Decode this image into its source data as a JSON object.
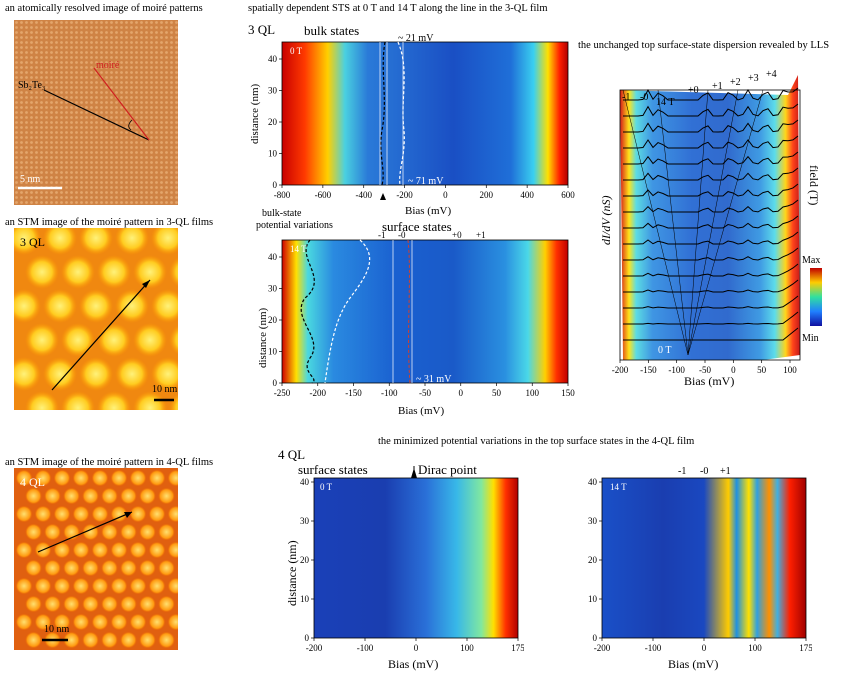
{
  "captions": {
    "moire_image": "an atomically resolved image of moiré patterns",
    "sts_3ql": "spatially dependent STS at 0 T and 14 T along the line in the 3-QL film",
    "lls": "the unchanged top surface-state dispersion revealed by LLS",
    "stm_3ql": "an STM image of the moiré pattern in 3-QL films",
    "stm_4ql": "an STM image of the moiré pattern in 4-QL films",
    "four_ql_min": "the minimized potential variations in the top surface states in the 4-QL film"
  },
  "panel_a": {
    "moire": "moiré",
    "substrate": "Sb₂Te₃",
    "scale": "5 nm"
  },
  "panel_3ql_img": {
    "label": "3 QL",
    "scale": "10 nm"
  },
  "panel_4ql_img": {
    "label": "4 QL",
    "scale": "10 nm"
  },
  "sts3_0T": {
    "ql": "3 QL",
    "title": "bulk states",
    "field": "0 T",
    "ann_top": "~ 21 mV",
    "ann_bottom": "~ 71 mV",
    "ylabel": "distance (nm)",
    "xlabel": "Bias (mV)",
    "xticks": [
      "-800",
      "-600",
      "-400",
      "-200",
      "0",
      "200",
      "400",
      "600"
    ],
    "yticks": [
      "0",
      "10",
      "20",
      "30",
      "40"
    ]
  },
  "sts3_14T": {
    "field": "14 T",
    "bulk_label_1": "bulk-state",
    "bulk_label_2": "potential variations",
    "surface": "surface states",
    "ll": [
      "-1",
      "-0",
      "+0",
      "+1"
    ],
    "ann": "~ 31 mV",
    "ylabel": "distance (nm)",
    "xlabel": "Bias (mV)",
    "xticks": [
      "-250",
      "-200",
      "-150",
      "-100",
      "-50",
      "0",
      "50",
      "100",
      "150"
    ],
    "yticks": [
      "0",
      "10",
      "20",
      "30",
      "40"
    ]
  },
  "lls": {
    "ylabel": "dI/dV (nS)",
    "ylabel_right": "field (T)",
    "xlabel": "Bias (mV)",
    "field_top": "14 T",
    "field_bottom": "0 T",
    "ll": [
      "-1",
      "-0",
      "+0",
      "+1",
      "+2",
      "+3",
      "+4"
    ],
    "cb_max": "Max",
    "cb_min": "Min",
    "xticks": [
      "-200",
      "-150",
      "-100",
      "-50",
      "0",
      "50",
      "100"
    ]
  },
  "sts4_0T": {
    "ql": "4 QL",
    "surface": "surface states",
    "dirac": "Dirac point",
    "field": "0 T",
    "ylabel": "distance (nm)",
    "xlabel": "Bias (mV)",
    "xticks": [
      "-200",
      "-100",
      "0",
      "100",
      "175"
    ],
    "yticks": [
      "0",
      "10",
      "20",
      "30",
      "40"
    ]
  },
  "sts4_14T": {
    "field": "14 T",
    "ll": [
      "-1",
      "-0",
      "+1"
    ],
    "xlabel": "Bias (mV)",
    "xticks": [
      "-200",
      "-100",
      "0",
      "100",
      "175"
    ],
    "yticks": [
      "0",
      "10",
      "20",
      "30",
      "40"
    ]
  }
}
